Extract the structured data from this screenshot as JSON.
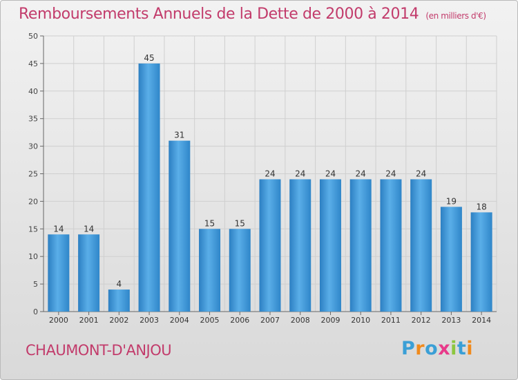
{
  "title": "Remboursements Annuels de la Dette de 2000 à 2014",
  "subtitle": "(en milliers d'€)",
  "place": "CHAUMONT-D'ANJOU",
  "logo": {
    "letters": [
      "P",
      "r",
      "o",
      "x",
      "i",
      "t",
      "i"
    ],
    "colors": [
      "#3a9fd6",
      "#f08a1c",
      "#3a9fd6",
      "#e83a8a",
      "#8cc63f",
      "#3a9fd6",
      "#f08a1c"
    ]
  },
  "colors": {
    "bar": "#3e95d6",
    "text": "#c23b6b",
    "grid": "#cfcfcf"
  },
  "chart_data": {
    "type": "bar",
    "categories": [
      "2000",
      "2001",
      "2002",
      "2003",
      "2004",
      "2005",
      "2006",
      "2007",
      "2008",
      "2009",
      "2010",
      "2011",
      "2012",
      "2013",
      "2014"
    ],
    "values": [
      14,
      14,
      4,
      45,
      31,
      15,
      15,
      24,
      24,
      24,
      24,
      24,
      24,
      19,
      18
    ],
    "ylim": [
      0,
      50
    ],
    "yticks": [
      0,
      5,
      10,
      15,
      20,
      25,
      30,
      35,
      40,
      45,
      50
    ],
    "grid": true,
    "data_labels": true
  }
}
